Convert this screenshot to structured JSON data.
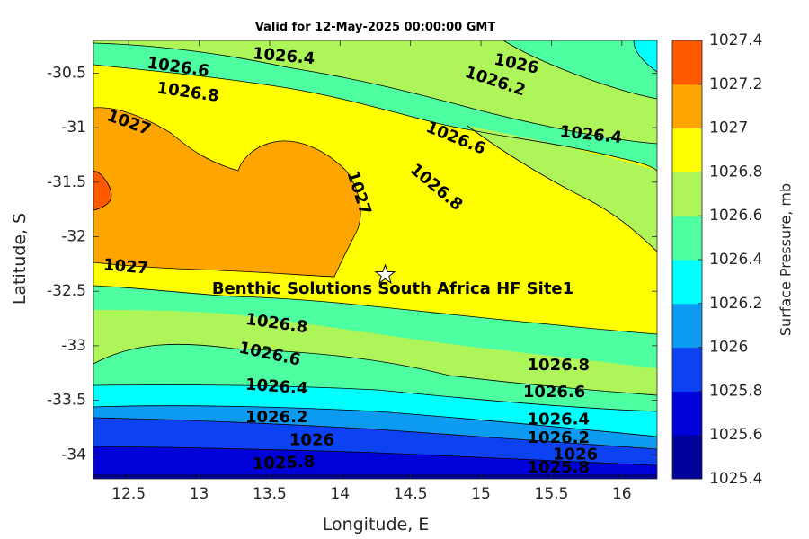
{
  "title": "Valid for 12-May-2025 00:00:00 GMT",
  "xlabel": "Longitude, E",
  "ylabel": "Latitude, S",
  "colorbar": {
    "label": "Surface Pressure, mb",
    "ticks": [
      "1025.4",
      "1025.6",
      "1025.8",
      "1026",
      "1026.2",
      "1026.4",
      "1026.6",
      "1026.8",
      "1027",
      "1027.2",
      "1027.4"
    ],
    "colors": [
      "#00009b",
      "#0000d9",
      "#0d42f2",
      "#0d9bf2",
      "#00ffff",
      "#4dffa0",
      "#aef55a",
      "#ffff00",
      "#ffa500",
      "#ff5a00",
      "#ff0000"
    ]
  },
  "site": {
    "name": "Benthic Solutions South Africa HF Site1",
    "lon": 14.32,
    "lat": -32.35,
    "marker": "star-icon"
  },
  "chart_data": {
    "type": "contour",
    "variable": "Surface Pressure",
    "units": "mb",
    "xlim": [
      12.25,
      16.25
    ],
    "ylim": [
      -34.22,
      -30.2
    ],
    "x_ticks": [
      "12.5",
      "13",
      "13.5",
      "14",
      "14.5",
      "15",
      "15.5",
      "16"
    ],
    "y_ticks": [
      "-30.5",
      "-31",
      "-31.5",
      "-32",
      "-32.5",
      "-33",
      "-33.5",
      "-34"
    ],
    "levels": [
      1025.4,
      1025.6,
      1025.8,
      1026,
      1026.2,
      1026.4,
      1026.6,
      1026.8,
      1027,
      1027.2,
      1027.4
    ],
    "contour_labels": [
      {
        "text": "1026.4",
        "lon": 13.6,
        "lat": -30.35,
        "angle": 5
      },
      {
        "text": "1026.6",
        "lon": 12.85,
        "lat": -30.45,
        "angle": 8
      },
      {
        "text": "1026",
        "lon": 15.25,
        "lat": -30.42,
        "angle": 12
      },
      {
        "text": "1026.2",
        "lon": 15.1,
        "lat": -30.58,
        "angle": 18
      },
      {
        "text": "1026.8",
        "lon": 12.92,
        "lat": -30.68,
        "angle": 8
      },
      {
        "text": "1027",
        "lon": 12.5,
        "lat": -30.96,
        "angle": 20
      },
      {
        "text": "1026.6",
        "lon": 14.82,
        "lat": -31.1,
        "angle": 22
      },
      {
        "text": "1026.4",
        "lon": 15.78,
        "lat": -31.07,
        "angle": 6
      },
      {
        "text": "1026.8",
        "lon": 14.68,
        "lat": -31.55,
        "angle": 40
      },
      {
        "text": "1027",
        "lon": 14.13,
        "lat": -31.6,
        "angle": 72
      },
      {
        "text": "1027",
        "lon": 12.48,
        "lat": -32.28,
        "angle": 5
      },
      {
        "text": "1026.8",
        "lon": 13.55,
        "lat": -32.8,
        "angle": 8
      },
      {
        "text": "1026.6",
        "lon": 13.5,
        "lat": -33.08,
        "angle": 12
      },
      {
        "text": "1026.4",
        "lon": 13.55,
        "lat": -33.38,
        "angle": 4
      },
      {
        "text": "1026.2",
        "lon": 13.55,
        "lat": -33.66,
        "angle": 0
      },
      {
        "text": "1026",
        "lon": 13.8,
        "lat": -33.87,
        "angle": 0
      },
      {
        "text": "1025.8",
        "lon": 13.6,
        "lat": -34.08,
        "angle": -2
      },
      {
        "text": "1026.8",
        "lon": 15.55,
        "lat": -33.18,
        "angle": 0
      },
      {
        "text": "1026.6",
        "lon": 15.52,
        "lat": -33.43,
        "angle": 0
      },
      {
        "text": "1026.4",
        "lon": 15.55,
        "lat": -33.68,
        "angle": 0
      },
      {
        "text": "1026.2",
        "lon": 15.55,
        "lat": -33.85,
        "angle": 0
      },
      {
        "text": "1026",
        "lon": 15.67,
        "lat": -34.0,
        "angle": 0
      },
      {
        "text": "1025.8",
        "lon": 15.55,
        "lat": -34.12,
        "angle": 0
      }
    ],
    "grid": false,
    "colorbar_position": "right"
  }
}
